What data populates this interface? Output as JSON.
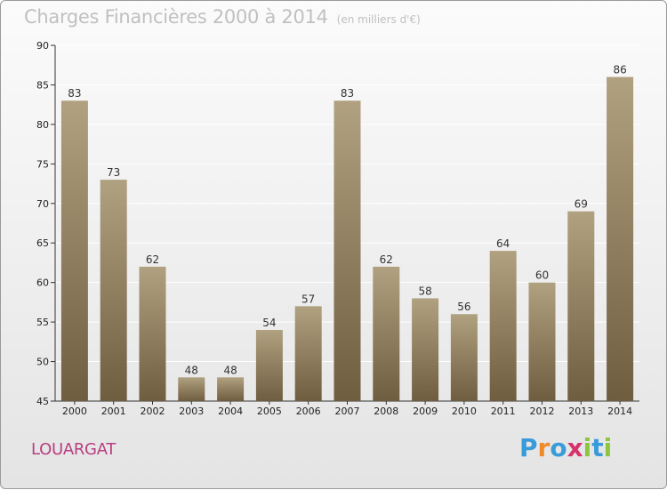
{
  "header": {
    "title": "Charges Financières 2000 à 2014",
    "subtitle": "(en milliers d'€)"
  },
  "footer": {
    "commune": "LOUARGAT",
    "logo": {
      "letters": [
        "P",
        "r",
        "o",
        "x",
        "i",
        "t",
        "i"
      ],
      "colors": [
        "#3a9bd9",
        "#ef8a2b",
        "#3a9bd9",
        "#d6336c",
        "#8cc63f",
        "#3a9bd9",
        "#8cc63f"
      ]
    }
  },
  "colors": {
    "bar_top": "#b0a180",
    "bar_bottom": "#6f5d3f",
    "grid": "#ffffff"
  },
  "chart_data": {
    "type": "bar",
    "categories": [
      "2000",
      "2001",
      "2002",
      "2003",
      "2004",
      "2005",
      "2006",
      "2007",
      "2008",
      "2009",
      "2010",
      "2011",
      "2012",
      "2013",
      "2014"
    ],
    "values": [
      83,
      73,
      62,
      48,
      48,
      54,
      57,
      83,
      62,
      58,
      56,
      64,
      60,
      69,
      86
    ],
    "ylim": [
      45,
      90
    ],
    "yticks": [
      45,
      50,
      55,
      60,
      65,
      70,
      75,
      80,
      85,
      90
    ],
    "grid": true,
    "xlabel": "",
    "ylabel": ""
  }
}
